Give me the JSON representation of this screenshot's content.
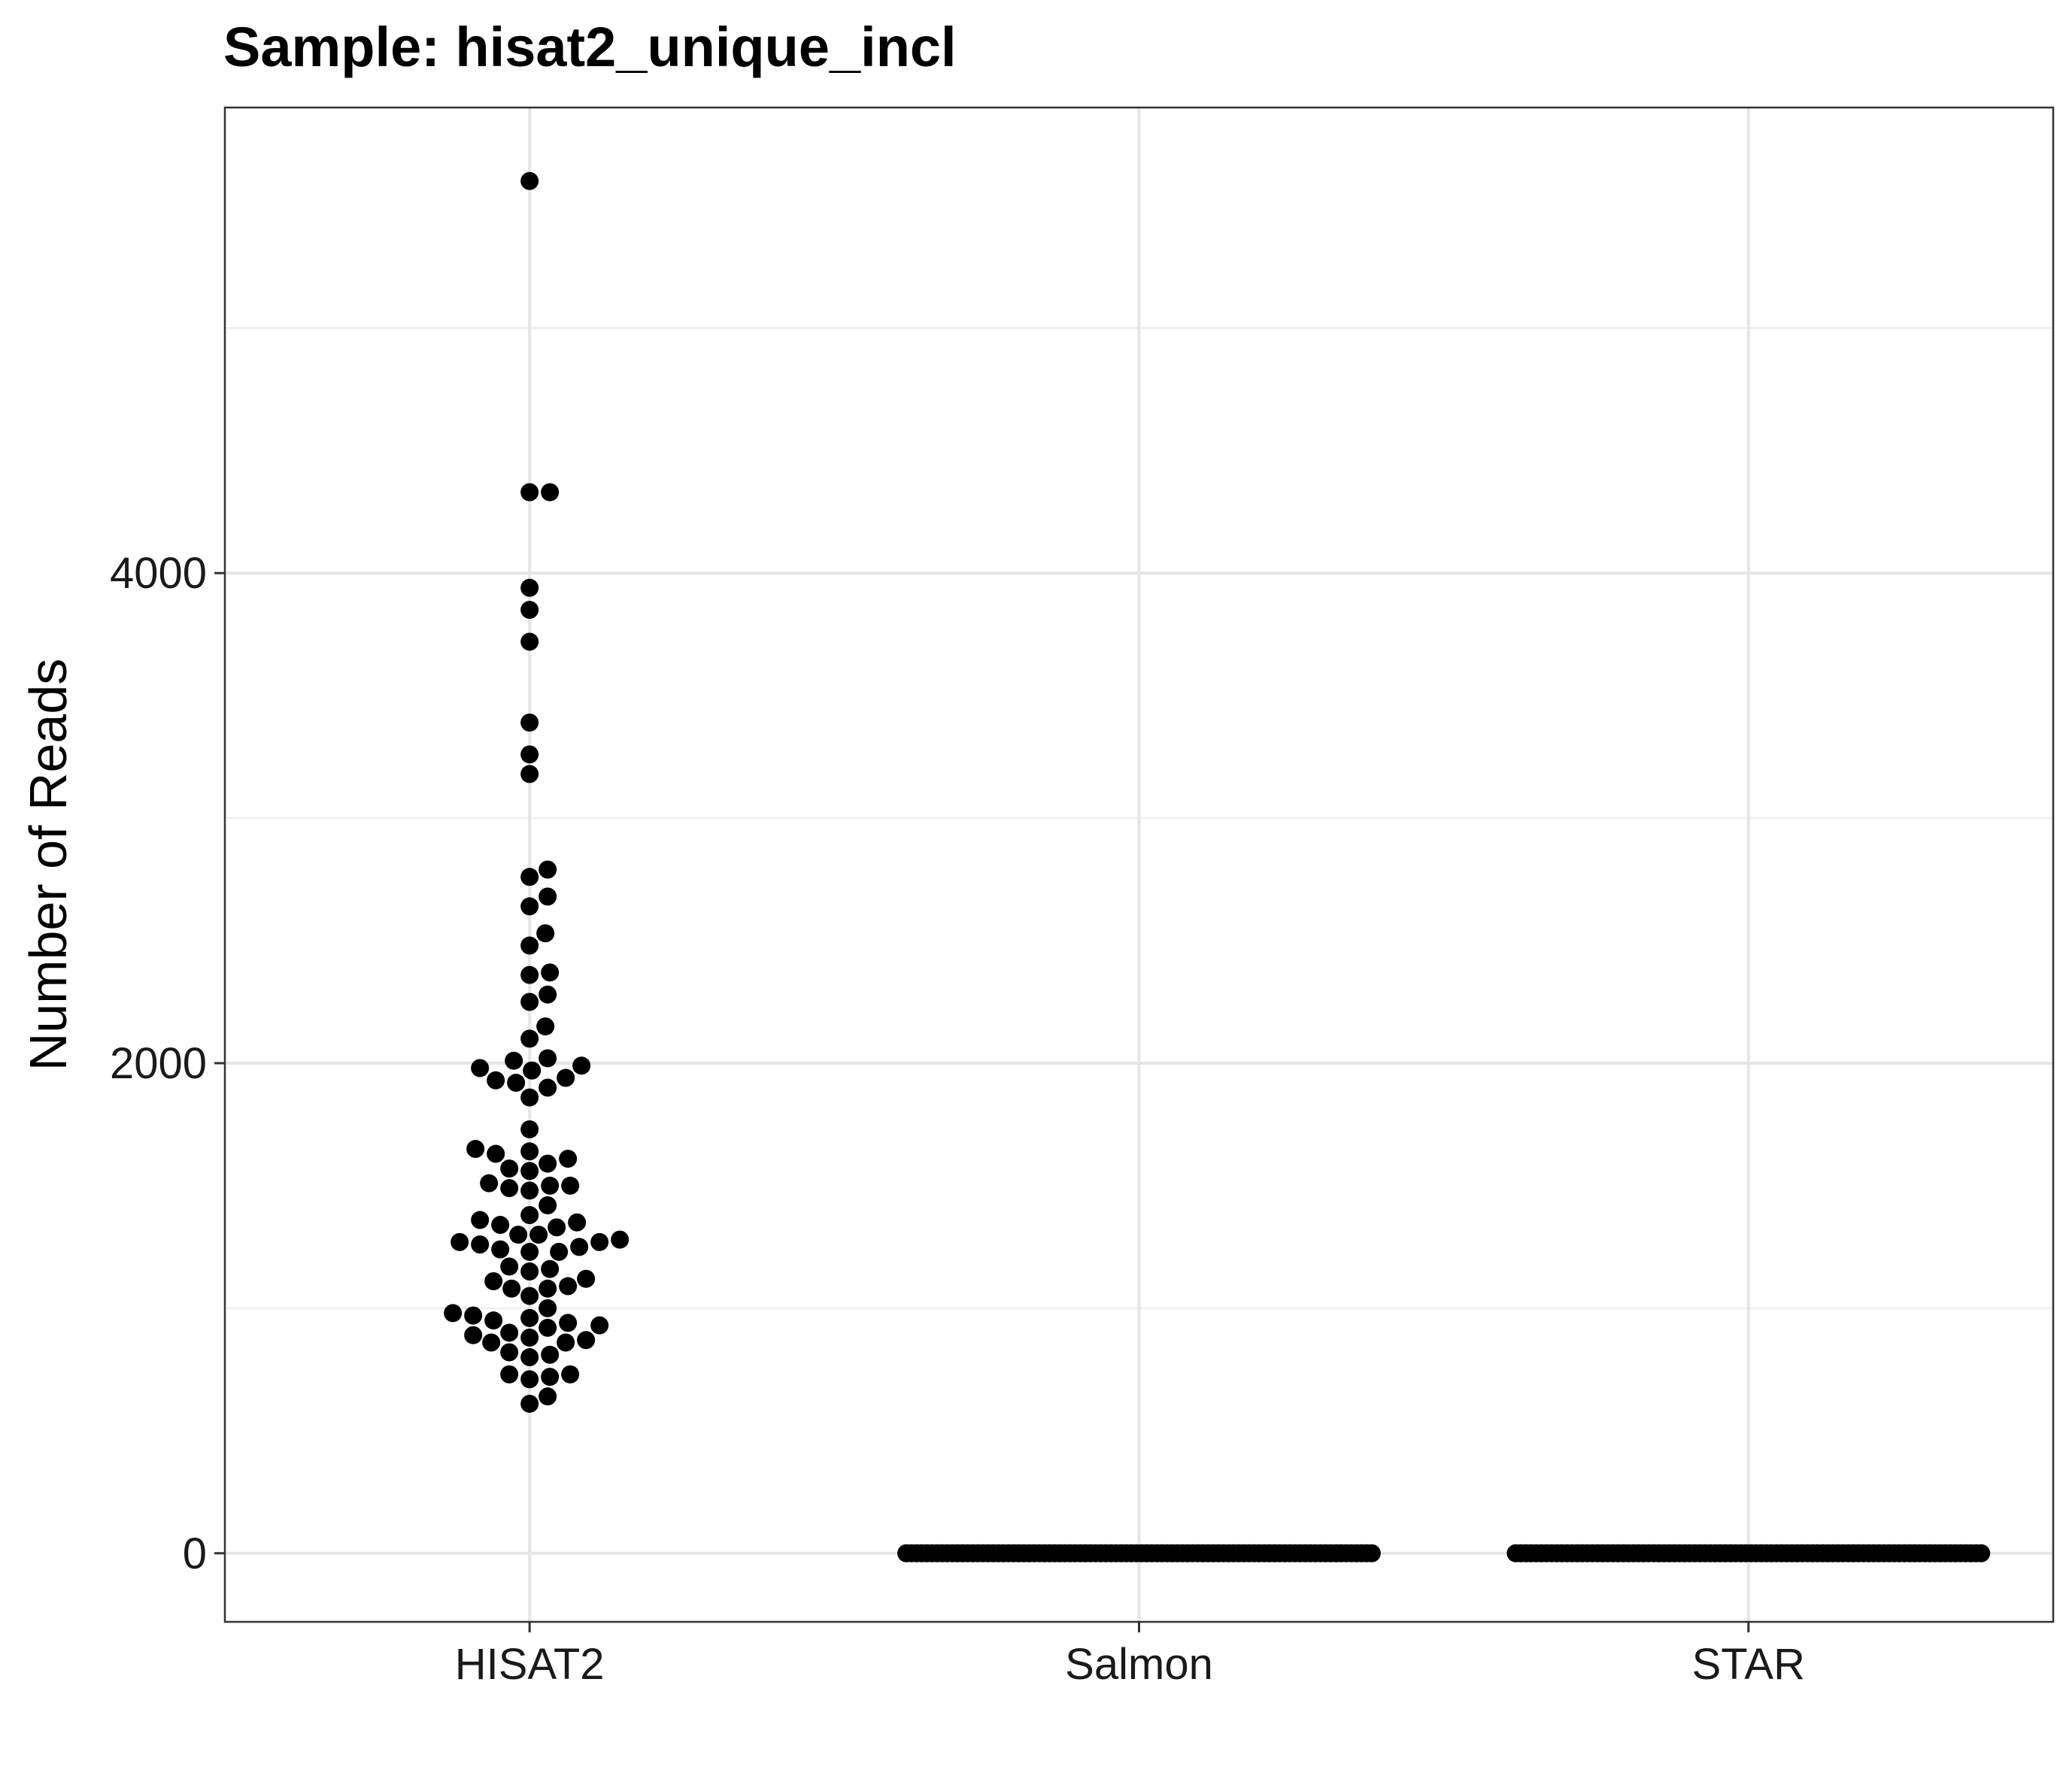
{
  "chart_data": {
    "type": "scatter",
    "subtype": "beeswarm",
    "title": "Sample: hisat2_unique_incl",
    "xlabel": "",
    "ylabel": "Number of Reads",
    "categories": [
      "HISAT2",
      "Salmon",
      "STAR"
    ],
    "ylim": [
      -280,
      5900
    ],
    "yticks": [
      0,
      2000,
      4000
    ],
    "ytick_labels": [
      "0",
      "2000",
      "4000"
    ],
    "grid": true,
    "legend": "none",
    "point_color": "#000000",
    "series": [
      {
        "category": "HISAT2",
        "values": [
          5600,
          4330,
          4330,
          3940,
          3850,
          3720,
          3390,
          3260,
          3180,
          2790,
          2760,
          2680,
          2640,
          2530,
          2480,
          2370,
          2360,
          2280,
          2250,
          2150,
          2100,
          2020,
          2010,
          1990,
          1980,
          1970,
          1940,
          1930,
          1920,
          1900,
          1860,
          1730,
          1650,
          1640,
          1630,
          1610,
          1590,
          1570,
          1560,
          1510,
          1500,
          1500,
          1490,
          1480,
          1420,
          1380,
          1360,
          1350,
          1340,
          1330,
          1300,
          1300,
          1280,
          1270,
          1270,
          1260,
          1250,
          1240,
          1230,
          1230,
          1170,
          1160,
          1150,
          1120,
          1110,
          1090,
          1080,
          1080,
          1050,
          1000,
          980,
          970,
          960,
          950,
          940,
          930,
          920,
          900,
          890,
          880,
          870,
          860,
          860,
          820,
          810,
          800,
          730,
          730,
          720,
          710,
          640,
          610
        ]
      },
      {
        "category": "Salmon",
        "count": 92,
        "value": 0
      },
      {
        "category": "STAR",
        "count": 92,
        "value": 0
      }
    ]
  }
}
